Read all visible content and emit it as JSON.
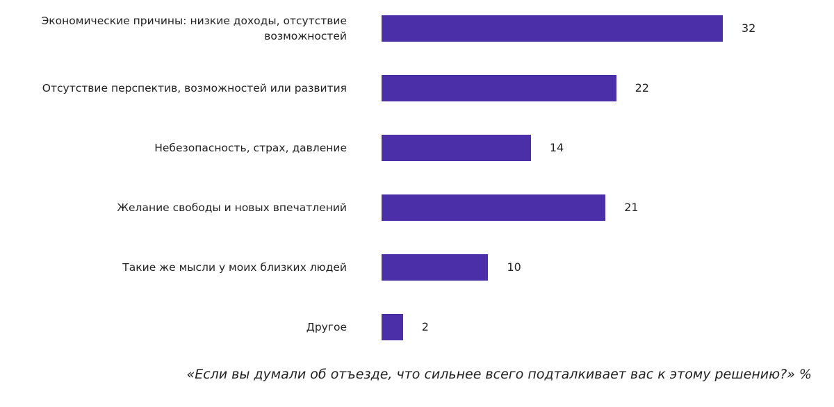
{
  "chart_data": {
    "type": "bar",
    "orientation": "horizontal",
    "categories": [
      "Экономические причины: низкие доходы, отсутствие возможностей",
      "Отсутствие перспектив, возможностей или развития",
      "Небезопасность, страх, давление",
      "Желание свободы и новых впечатлений",
      "Такие же мысли у моих близких людей",
      "Другое"
    ],
    "values": [
      32,
      22,
      14,
      21,
      10,
      2
    ],
    "title": "«Если вы думали об отъезде, что сильнее всего подталкивает вас к этому решению?» %",
    "xlabel": "",
    "ylabel": "",
    "xlim": [
      0,
      32
    ],
    "grid": false,
    "bar_color": "#4a2fa8"
  }
}
